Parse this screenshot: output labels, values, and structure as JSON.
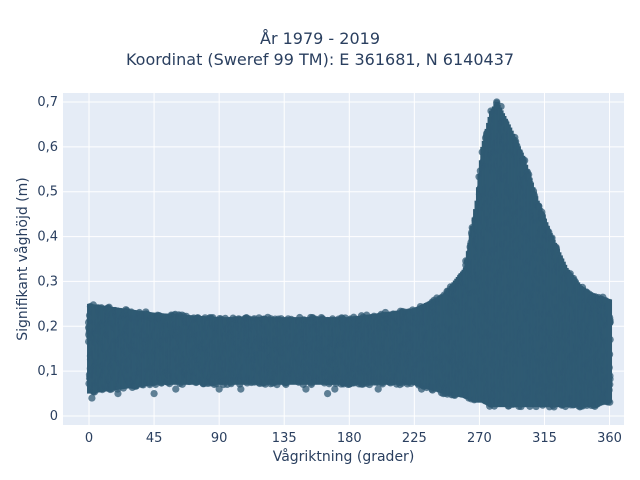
{
  "chart_data": {
    "type": "scatter",
    "title_line1": "År 1979 - 2019",
    "title_line2": "Koordinat (Sweref 99 TM): E 361681, N 6140437",
    "xlabel": "Vågriktning (grader)",
    "ylabel": "Signifikant våghöjd (m)",
    "xlim": [
      -18,
      370
    ],
    "ylim": [
      -0.02,
      0.72
    ],
    "x_ticks": [
      0,
      45,
      90,
      135,
      180,
      225,
      270,
      315,
      360
    ],
    "x_tick_labels": [
      "0",
      "45",
      "90",
      "135",
      "180",
      "225",
      "270",
      "315",
      "360"
    ],
    "y_ticks": [
      0,
      0.1,
      0.2,
      0.3,
      0.4,
      0.5,
      0.6,
      0.7
    ],
    "y_tick_labels": [
      "0",
      "0,1",
      "0,2",
      "0,3",
      "0,4",
      "0,5",
      "0,6",
      "0,7"
    ],
    "grid": true,
    "colors": {
      "marker": "#2f5a73",
      "plot_bg": "#e5ecf6",
      "grid": "#ffffff"
    },
    "envelope": [
      {
        "x": 0,
        "ymin": 0.05,
        "ymax": 0.25
      },
      {
        "x": 45,
        "ymin": 0.07,
        "ymax": 0.23
      },
      {
        "x": 90,
        "ymin": 0.07,
        "ymax": 0.22
      },
      {
        "x": 135,
        "ymin": 0.07,
        "ymax": 0.22
      },
      {
        "x": 180,
        "ymin": 0.07,
        "ymax": 0.22
      },
      {
        "x": 225,
        "ymin": 0.07,
        "ymax": 0.24
      },
      {
        "x": 245,
        "ymin": 0.05,
        "ymax": 0.27
      },
      {
        "x": 260,
        "ymin": 0.04,
        "ymax": 0.33
      },
      {
        "x": 268,
        "ymin": 0.03,
        "ymax": 0.48
      },
      {
        "x": 272,
        "ymin": 0.03,
        "ymax": 0.6
      },
      {
        "x": 278,
        "ymin": 0.02,
        "ymax": 0.68
      },
      {
        "x": 282,
        "ymin": 0.02,
        "ymax": 0.7
      },
      {
        "x": 290,
        "ymin": 0.02,
        "ymax": 0.65
      },
      {
        "x": 300,
        "ymin": 0.02,
        "ymax": 0.58
      },
      {
        "x": 310,
        "ymin": 0.02,
        "ymax": 0.48
      },
      {
        "x": 320,
        "ymin": 0.02,
        "ymax": 0.4
      },
      {
        "x": 330,
        "ymin": 0.02,
        "ymax": 0.33
      },
      {
        "x": 340,
        "ymin": 0.02,
        "ymax": 0.29
      },
      {
        "x": 350,
        "ymin": 0.02,
        "ymax": 0.27
      },
      {
        "x": 360,
        "ymin": 0.03,
        "ymax": 0.26
      }
    ],
    "sample_points": [
      {
        "x": 2,
        "y": 0.04
      },
      {
        "x": 20,
        "y": 0.05
      },
      {
        "x": 45,
        "y": 0.05
      },
      {
        "x": 60,
        "y": 0.06
      },
      {
        "x": 90,
        "y": 0.06
      },
      {
        "x": 105,
        "y": 0.06
      },
      {
        "x": 130,
        "y": 0.07
      },
      {
        "x": 150,
        "y": 0.06
      },
      {
        "x": 165,
        "y": 0.05
      },
      {
        "x": 170,
        "y": 0.06
      },
      {
        "x": 200,
        "y": 0.06
      },
      {
        "x": 215,
        "y": 0.07
      },
      {
        "x": 230,
        "y": 0.06
      },
      {
        "x": 245,
        "y": 0.05
      },
      {
        "x": 355,
        "y": 0.04
      },
      {
        "x": 282,
        "y": 0.7
      },
      {
        "x": 285,
        "y": 0.69
      },
      {
        "x": 278,
        "y": 0.68
      }
    ]
  }
}
